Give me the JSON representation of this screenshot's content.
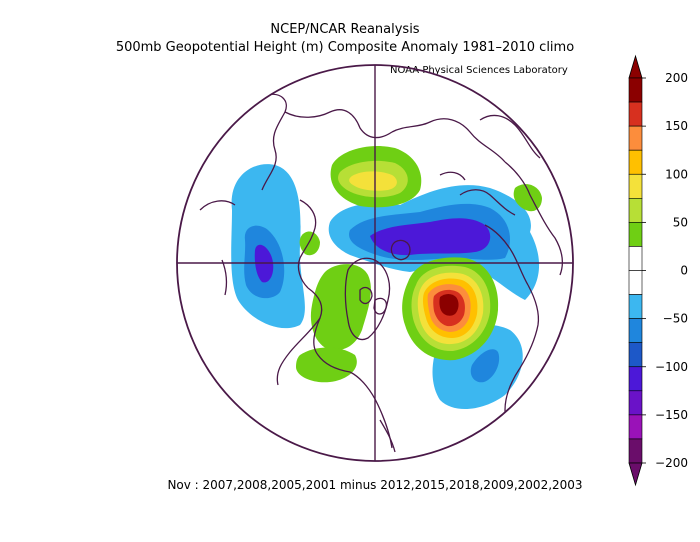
{
  "header": {
    "title": "NCEP/NCAR Reanalysis",
    "subtitle": "500mb Geopotential Height (m) Composite Anomaly 1981–2010 climo",
    "credit": "NOAA Physical Sciences Laboratory"
  },
  "caption": "Nov : 2007,2008,2005,2001 minus 2012,2015,2018,2009,2002,2003",
  "colorbar": {
    "labels": [
      "200",
      "150",
      "100",
      "50",
      "0",
      "−50",
      "−100",
      "−150",
      "−200"
    ],
    "colors": [
      "#8b0000",
      "#d7301f",
      "#fc8d3c",
      "#ffc000",
      "#f4e13a",
      "#b7df36",
      "#6fcf14",
      "#ffffff",
      "#ffffff",
      "#3cb7f0",
      "#1f86dd",
      "#1d58c8",
      "#4c18d8",
      "#6a12c8",
      "#9a12b8",
      "#6a0d6a"
    ]
  },
  "map_style": {
    "boundary_color": "#4a1948",
    "coast_color": "#4a1948"
  }
}
